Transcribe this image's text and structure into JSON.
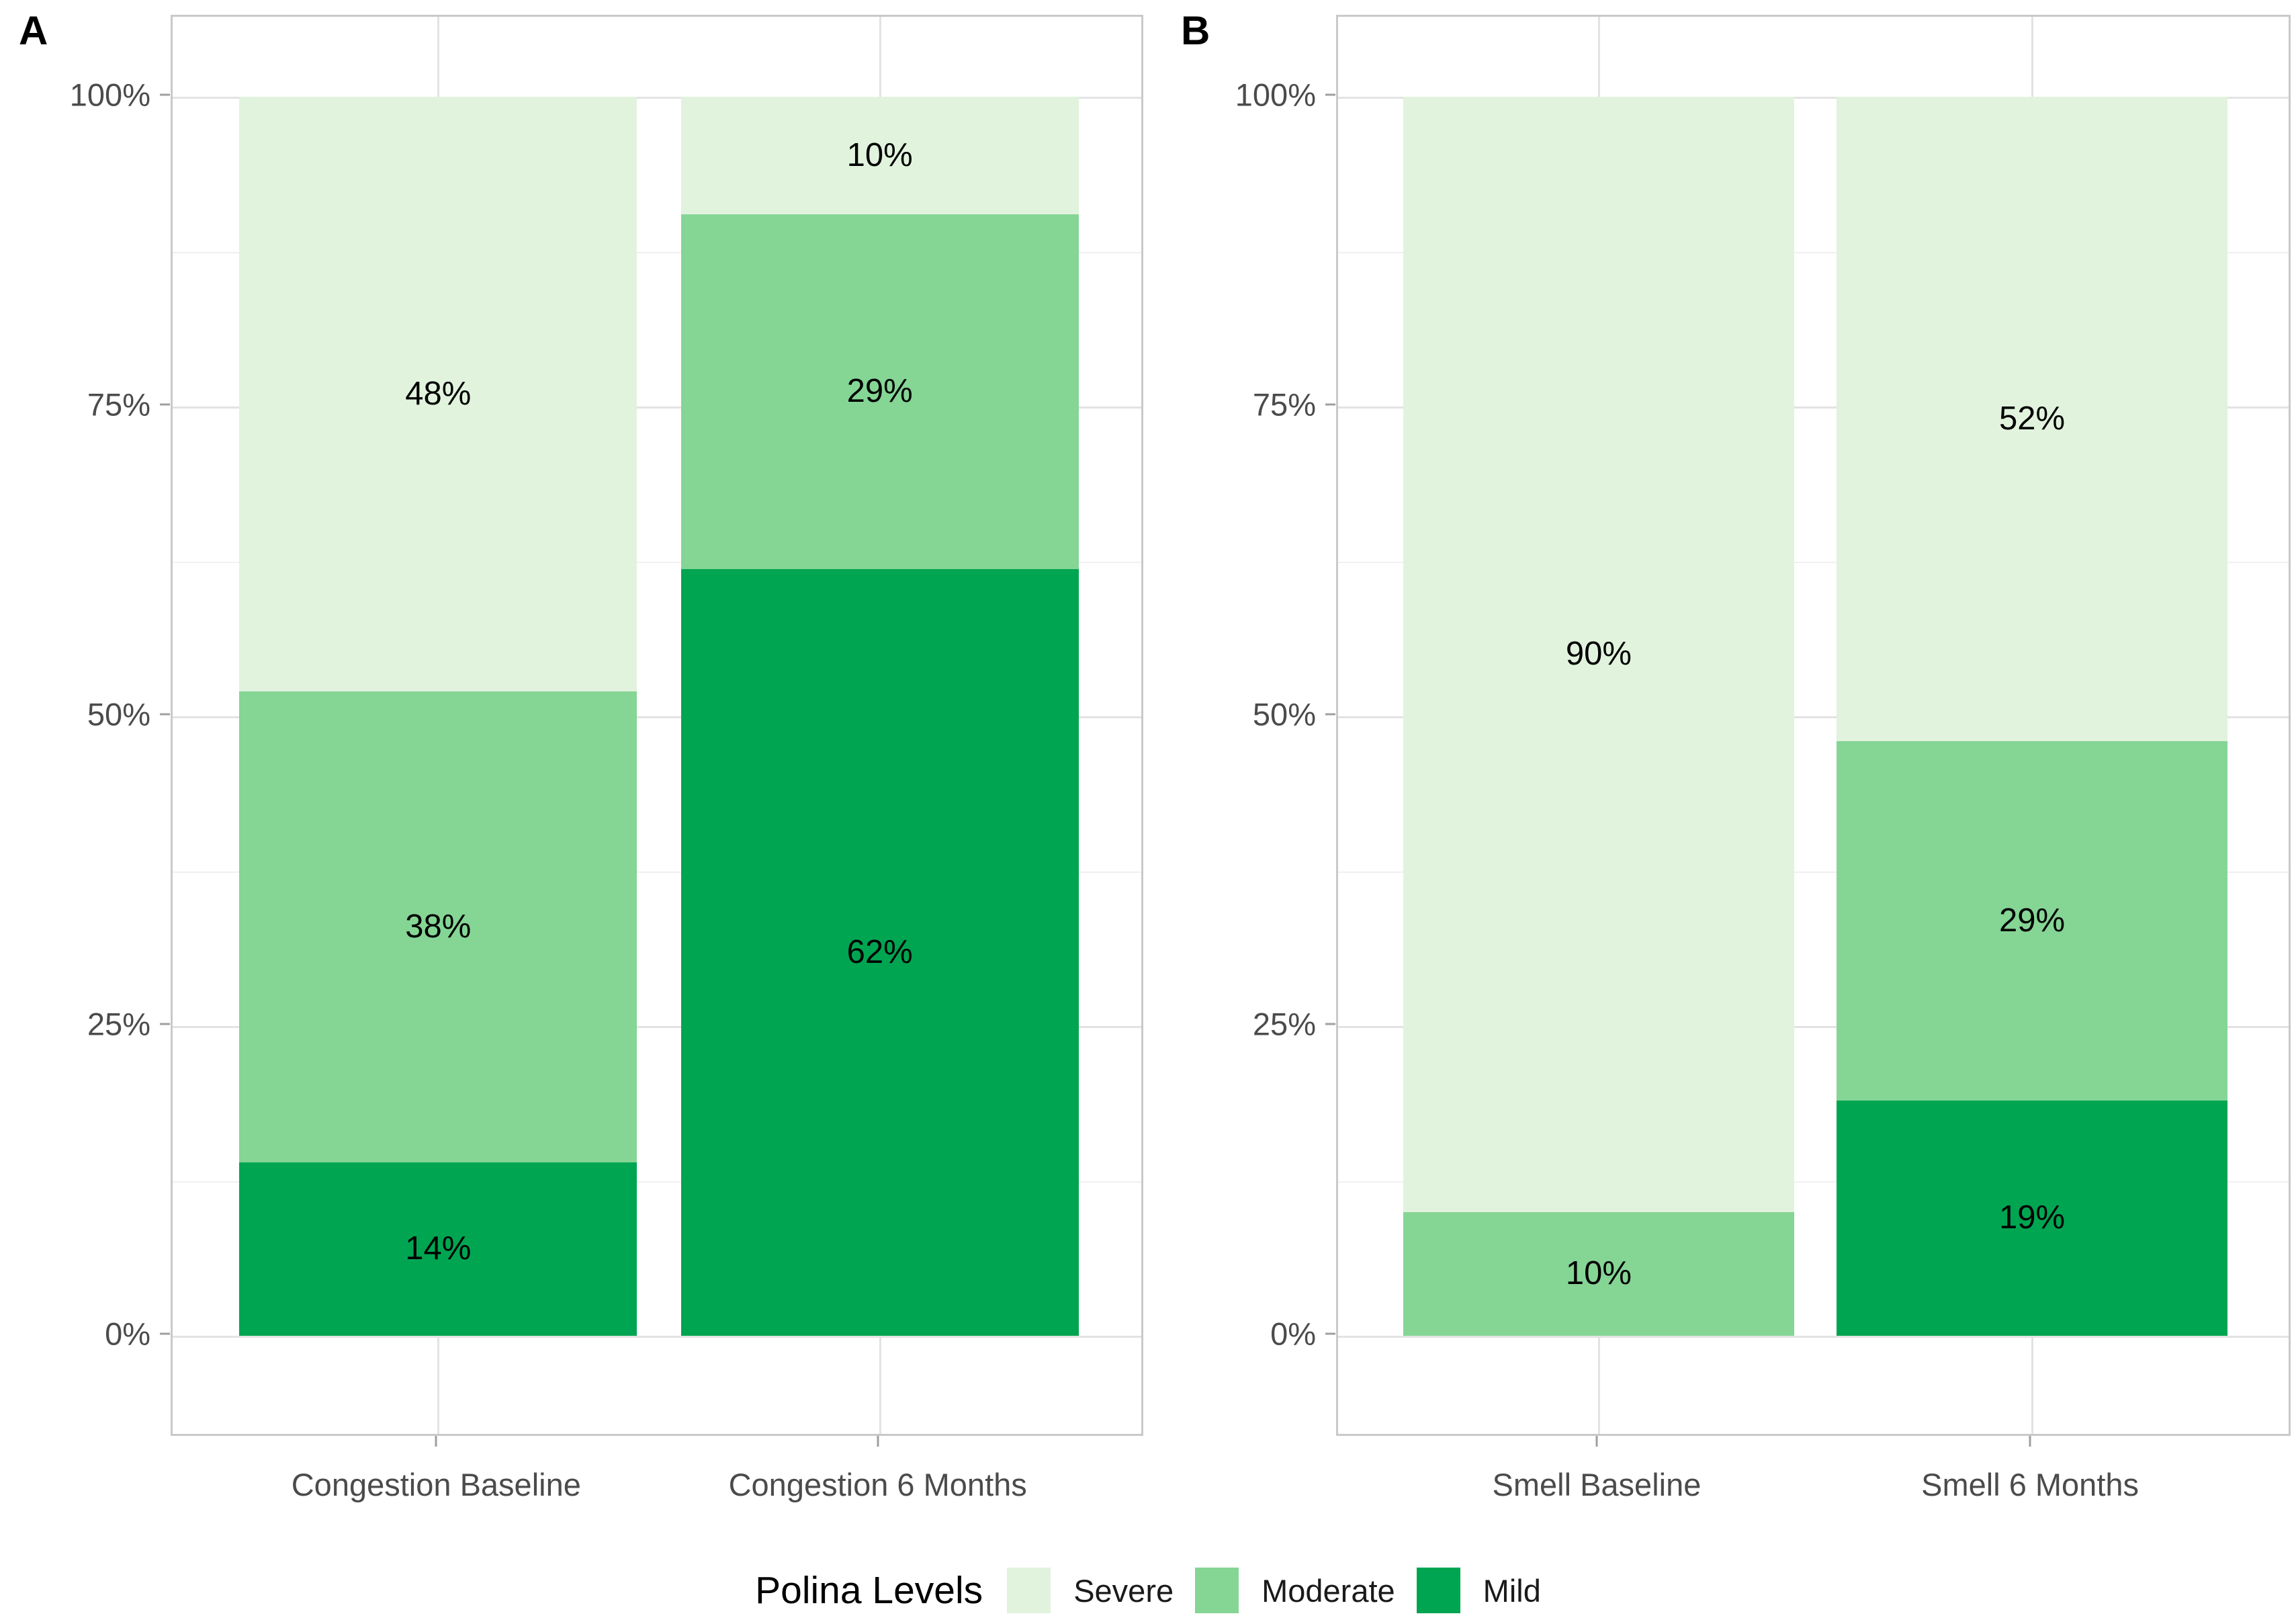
{
  "figure_title": "",
  "panel_tags": [
    "A",
    "B"
  ],
  "colors": {
    "Severe": "#e1f3dd",
    "Moderate": "#85d595",
    "Mild": "#00a551",
    "grid_major": "#e3e3e3",
    "grid_minor": "#f0f0f0",
    "panel_border": "#c9c9c9",
    "axis_text": "#4b4b4b",
    "bar_label": "#000000"
  },
  "legend": {
    "title": "Polina Levels",
    "items": [
      {
        "label": "Severe",
        "color": "#e1f3dd"
      },
      {
        "label": "Moderate",
        "color": "#85d595"
      },
      {
        "label": "Mild",
        "color": "#00a551"
      }
    ]
  },
  "chart_data": [
    {
      "type": "bar",
      "stacked": true,
      "units": "percent",
      "panel_tag": "A",
      "categories": [
        "Congestion Baseline",
        "Congestion 6 Months"
      ],
      "series": [
        {
          "name": "Severe",
          "values": [
            48,
            10
          ],
          "labels": [
            "48%",
            "10%"
          ],
          "heights": [
            48,
            9.5
          ]
        },
        {
          "name": "Moderate",
          "values": [
            38,
            29
          ],
          "labels": [
            "38%",
            "29%"
          ],
          "heights": [
            38,
            28.6
          ]
        },
        {
          "name": "Mild",
          "values": [
            14,
            62
          ],
          "labels": [
            "14%",
            "62%"
          ],
          "heights": [
            14,
            61.9
          ]
        }
      ],
      "xlabel": "",
      "ylabel": "",
      "ylim": [
        0,
        100
      ],
      "yticks": [
        {
          "value": 0,
          "label": "0%"
        },
        {
          "value": 25,
          "label": "25%"
        },
        {
          "value": 50,
          "label": "50%"
        },
        {
          "value": 75,
          "label": "75%"
        },
        {
          "value": 100,
          "label": "100%"
        }
      ],
      "minor_gridlines": [
        12.5,
        37.5,
        62.5,
        87.5
      ],
      "grid": "on",
      "legend_position": "bottom"
    },
    {
      "type": "bar",
      "stacked": true,
      "units": "percent",
      "panel_tag": "B",
      "categories": [
        "Smell Baseline",
        "Smell 6 Months"
      ],
      "series": [
        {
          "name": "Severe",
          "values": [
            90,
            52
          ],
          "labels": [
            "90%",
            "52%"
          ],
          "heights": [
            90,
            52
          ]
        },
        {
          "name": "Moderate",
          "values": [
            10,
            29
          ],
          "labels": [
            "10%",
            "29%"
          ],
          "heights": [
            10,
            29
          ]
        },
        {
          "name": "Mild",
          "values": [
            null,
            19
          ],
          "labels": [
            "",
            "19%"
          ],
          "heights": [
            0,
            19
          ]
        }
      ],
      "xlabel": "",
      "ylabel": "",
      "ylim": [
        0,
        100
      ],
      "yticks": [
        {
          "value": 0,
          "label": "0%"
        },
        {
          "value": 25,
          "label": "25%"
        },
        {
          "value": 50,
          "label": "50%"
        },
        {
          "value": 75,
          "label": "75%"
        },
        {
          "value": 100,
          "label": "100%"
        }
      ],
      "minor_gridlines": [
        12.5,
        37.5,
        62.5,
        87.5
      ],
      "grid": "on",
      "legend_position": "bottom"
    }
  ]
}
